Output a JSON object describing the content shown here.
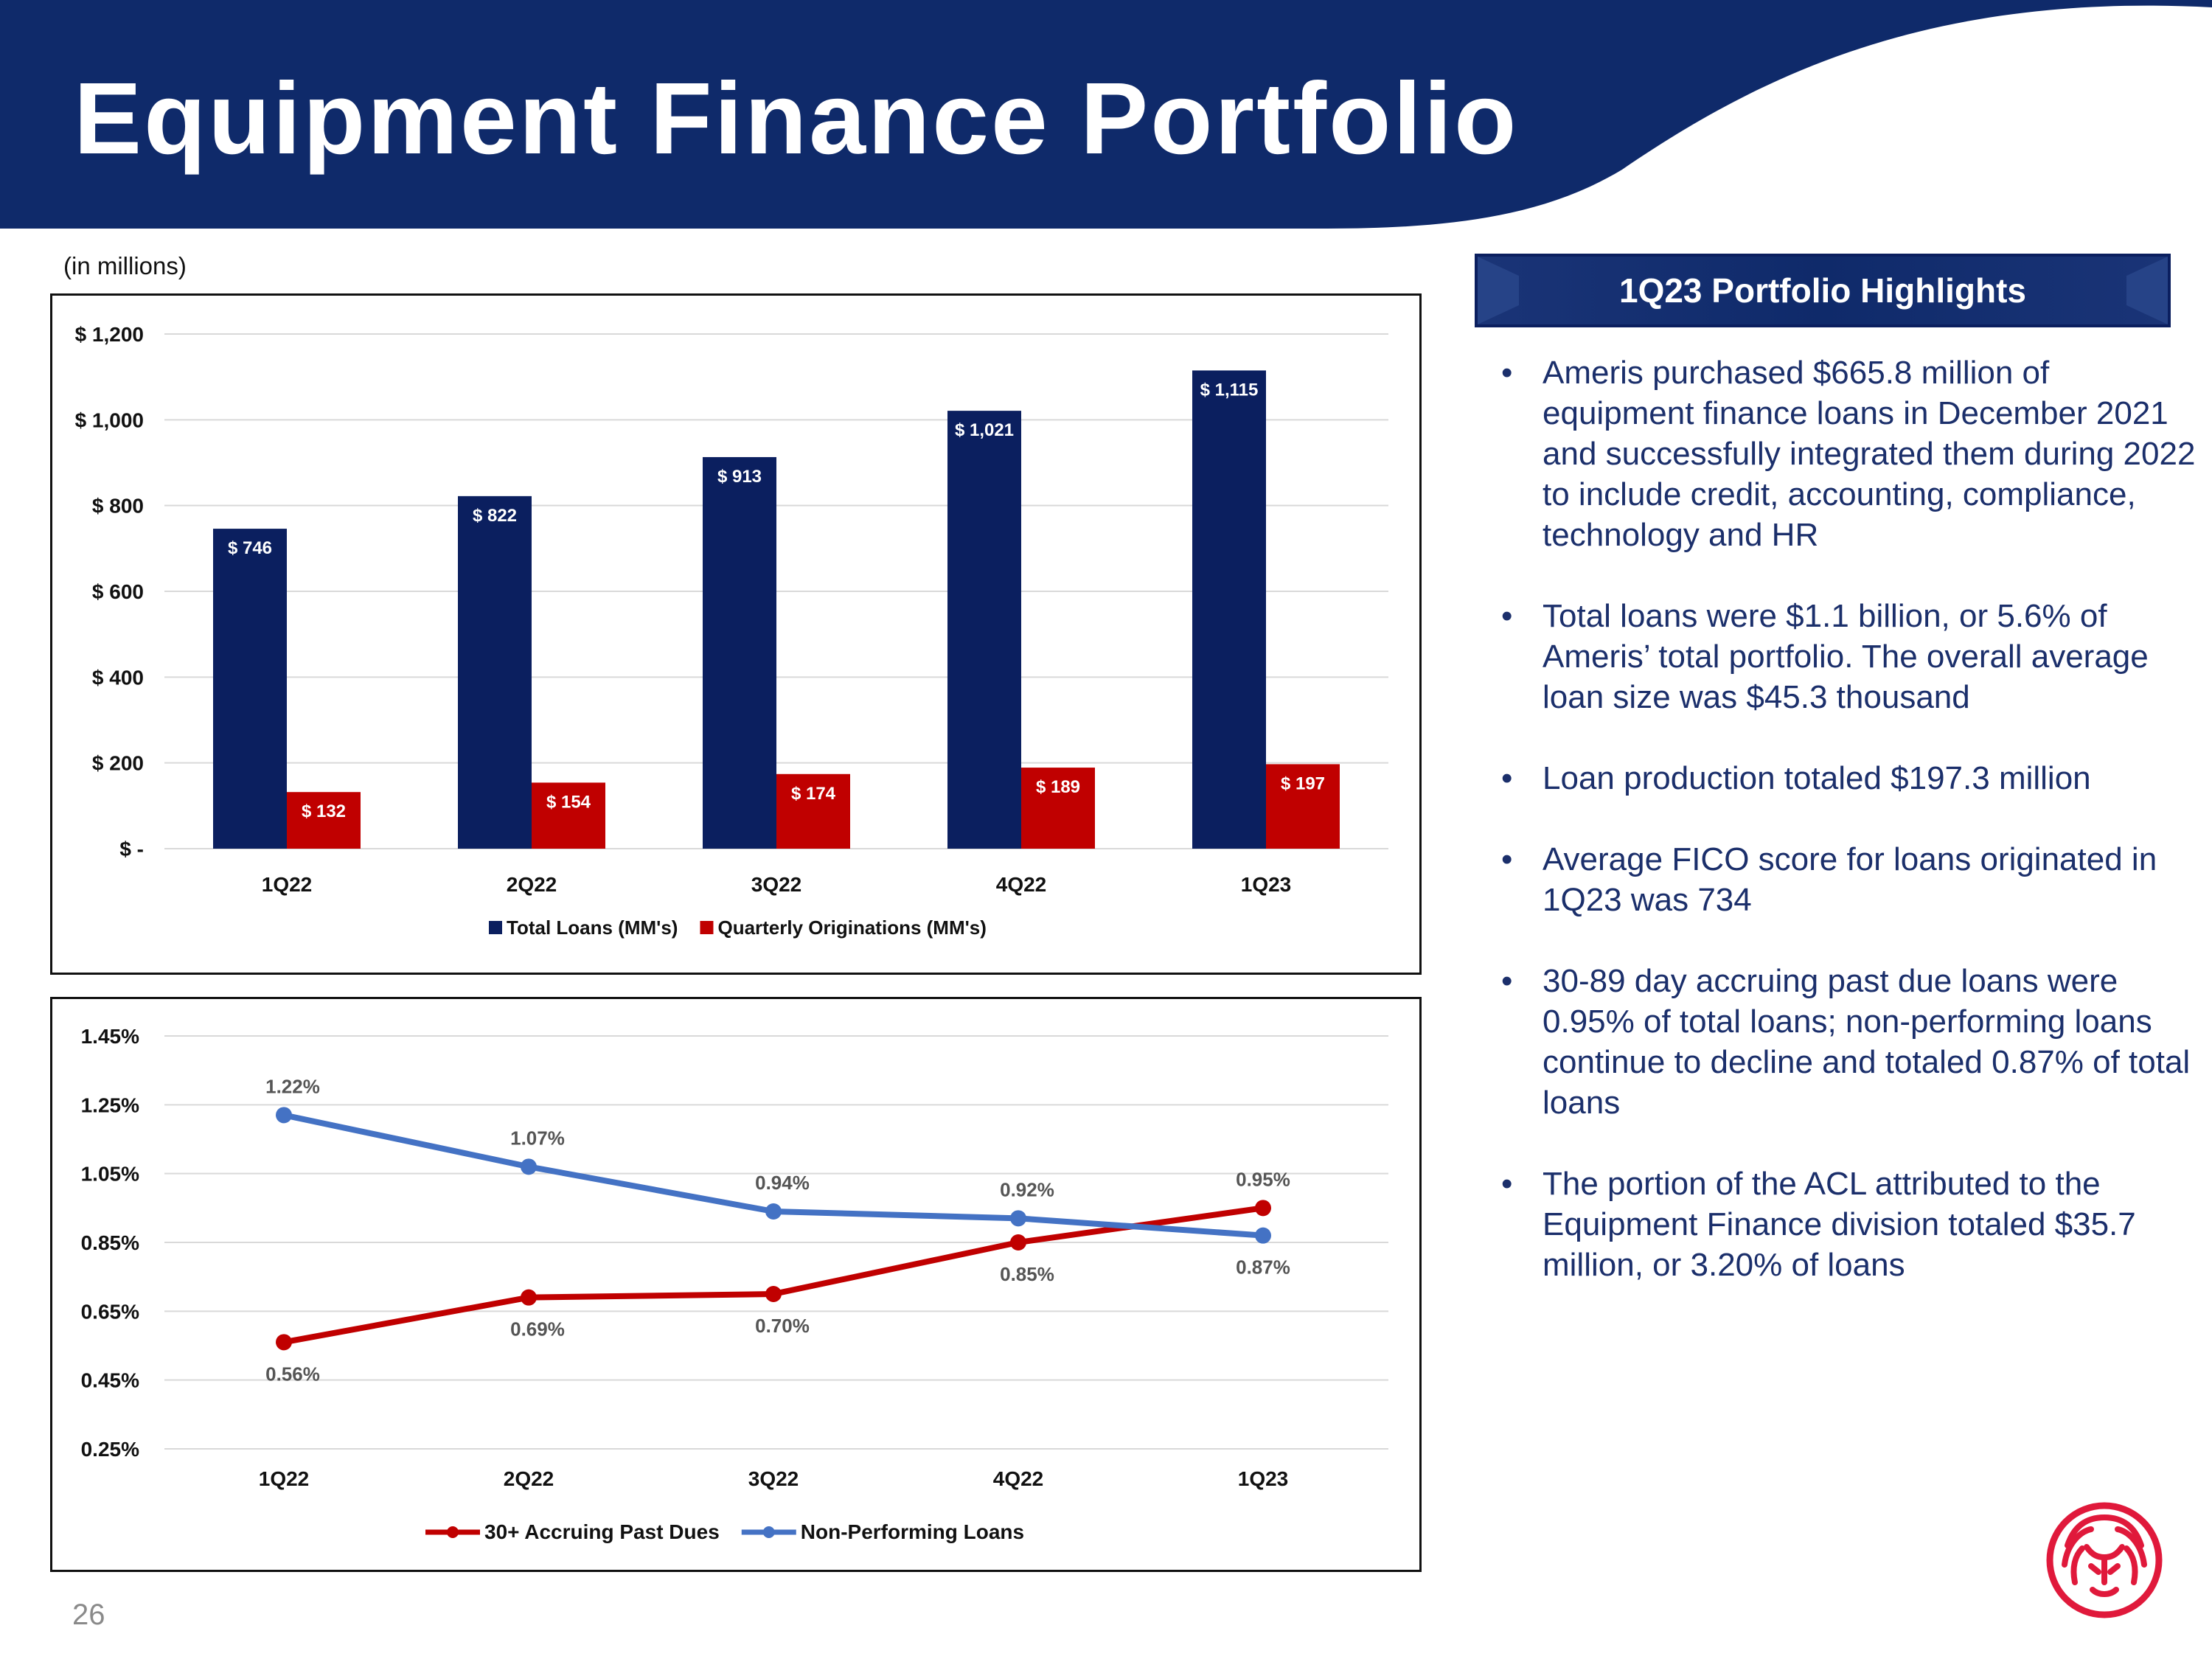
{
  "header": {
    "title": "Equipment Finance Portfolio",
    "bg_color": "#0f2a6a"
  },
  "units_note": "(in millions)",
  "highlights": {
    "title": "1Q23 Portfolio Highlights",
    "bullet_char": "•",
    "items": [
      "Ameris purchased $665.8 million of equipment finance loans in December 2021 and successfully integrated them during 2022 to include credit, accounting, compliance, technology and HR",
      "Total loans were $1.1 billion, or 5.6% of Ameris’ total portfolio. The overall average loan size was $45.3 thousand",
      "Loan production totaled $197.3 million",
      "Average FICO score for loans originated in 1Q23 was 734",
      "30-89 day accruing past due loans were 0.95% of total loans; non-performing loans continue to decline and totaled 0.87% of total loans",
      "The portion of the ACL attributed to the Equipment Finance division totaled $35.7 million, or 3.20% of loans"
    ]
  },
  "page_number": "26",
  "chart_data": [
    {
      "type": "bar",
      "title": "",
      "categories": [
        "1Q22",
        "2Q22",
        "3Q22",
        "4Q22",
        "1Q23"
      ],
      "ylim": [
        0,
        1200
      ],
      "yticks": [
        0,
        200,
        400,
        600,
        800,
        1000,
        1200
      ],
      "ytick_labels": [
        "$ -",
        "$ 200",
        "$ 400",
        "$ 600",
        "$ 800",
        "$ 1,000",
        "$ 1,200"
      ],
      "series": [
        {
          "name": "Total Loans (MM's)",
          "color": "#0b1f5f",
          "values": [
            746,
            822,
            913,
            1021,
            1115
          ],
          "labels": [
            "$ 746",
            "$ 822",
            "$ 913",
            "$ 1,021",
            "$ 1,115"
          ]
        },
        {
          "name": "Quarterly Originations (MM's)",
          "color": "#c00000",
          "values": [
            132,
            154,
            174,
            189,
            197
          ],
          "labels": [
            "$ 132",
            "$ 154",
            "$ 174",
            "$ 189",
            "$ 197"
          ]
        }
      ],
      "legend": "bottom",
      "grid": true
    },
    {
      "type": "line",
      "title": "",
      "categories": [
        "1Q22",
        "2Q22",
        "3Q22",
        "4Q22",
        "1Q23"
      ],
      "ylim": [
        0.25,
        1.45
      ],
      "yticks": [
        0.25,
        0.45,
        0.65,
        0.85,
        1.05,
        1.25,
        1.45
      ],
      "ytick_labels": [
        "0.25%",
        "0.45%",
        "0.65%",
        "0.85%",
        "1.05%",
        "1.25%",
        "1.45%"
      ],
      "series": [
        {
          "name": "30+ Accruing Past Dues",
          "color": "#c00000",
          "values": [
            0.56,
            0.69,
            0.7,
            0.85,
            0.95
          ],
          "labels": [
            "0.56%",
            "0.69%",
            "0.70%",
            "0.85%",
            "0.95%"
          ],
          "label_pos": [
            "below",
            "below",
            "below",
            "below",
            "above"
          ]
        },
        {
          "name": "Non-Performing Loans",
          "color": "#4472c4",
          "values": [
            1.22,
            1.07,
            0.94,
            0.92,
            0.87
          ],
          "labels": [
            "1.22%",
            "1.07%",
            "0.94%",
            "0.92%",
            "0.87%"
          ],
          "label_pos": [
            "above",
            "above",
            "above",
            "above",
            "below"
          ]
        }
      ],
      "legend": "bottom",
      "grid": true
    }
  ]
}
